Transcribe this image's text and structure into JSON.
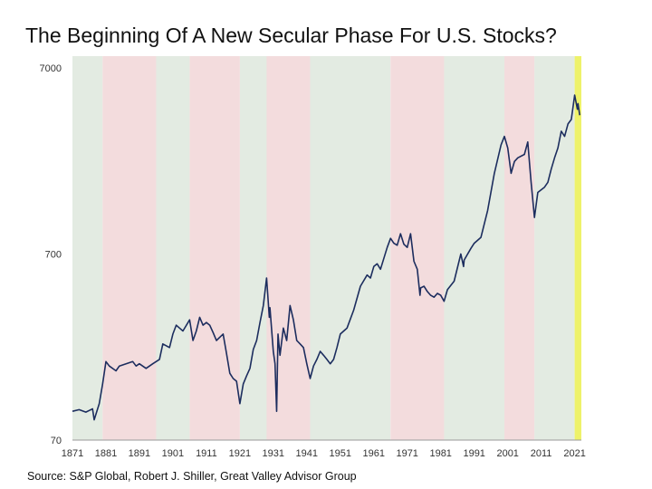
{
  "header": {
    "title": "The Beginning Of A New Secular Phase For U.S. Stocks?"
  },
  "footer": {
    "source": "Source: S&P Global, Robert J. Shiller, Great Valley Advisor Group"
  },
  "chart_data": {
    "type": "line",
    "title": "The Beginning Of A New Secular Phase For U.S. Stocks?",
    "xlabel": "",
    "ylabel": "",
    "y_scale": "log",
    "xlim": [
      1871,
      2023
    ],
    "ylim": [
      70,
      7000
    ],
    "x_ticks": [
      "1871",
      "1881",
      "1891",
      "1901",
      "1911",
      "1921",
      "1931",
      "1941",
      "1951",
      "1961",
      "1971",
      "1981",
      "1991",
      "2001",
      "2011",
      "2021"
    ],
    "y_ticks": [
      "70",
      "700",
      "7000"
    ],
    "grid": false,
    "legend": "none",
    "regimes": [
      {
        "start": 1871,
        "end": 1880,
        "type": "bull",
        "color": "#e3ebe2"
      },
      {
        "start": 1880,
        "end": 1896,
        "type": "bear",
        "color": "#f3dcdd"
      },
      {
        "start": 1896,
        "end": 1906,
        "type": "bull",
        "color": "#e3ebe2"
      },
      {
        "start": 1906,
        "end": 1921,
        "type": "bear",
        "color": "#f3dcdd"
      },
      {
        "start": 1921,
        "end": 1929,
        "type": "bull",
        "color": "#e3ebe2"
      },
      {
        "start": 1929,
        "end": 1942,
        "type": "bear",
        "color": "#f3dcdd"
      },
      {
        "start": 1942,
        "end": 1966,
        "type": "bull",
        "color": "#e3ebe2"
      },
      {
        "start": 1966,
        "end": 1982,
        "type": "bear",
        "color": "#f3dcdd"
      },
      {
        "start": 1982,
        "end": 2000,
        "type": "bull",
        "color": "#e3ebe2"
      },
      {
        "start": 2000,
        "end": 2009,
        "type": "bear",
        "color": "#f3dcdd"
      },
      {
        "start": 2009,
        "end": 2021,
        "type": "bull",
        "color": "#e3ebe2"
      },
      {
        "start": 2021,
        "end": 2023,
        "type": "current",
        "color": "#eef26a"
      }
    ],
    "series": [
      {
        "color": "#1c2d5e",
        "x": [
          1871,
          1873,
          1875,
          1876,
          1877,
          1877.5,
          1879,
          1880,
          1881,
          1882,
          1884,
          1885,
          1887,
          1889,
          1890,
          1891,
          1893,
          1895,
          1897,
          1898,
          1900,
          1901,
          1902,
          1903,
          1904,
          1906,
          1907,
          1908,
          1909,
          1910,
          1911,
          1912,
          1913,
          1914,
          1915,
          1916,
          1917,
          1918,
          1919,
          1920,
          1921,
          1922,
          1923,
          1924,
          1925,
          1926,
          1927,
          1928,
          1929,
          1929.8,
          1930,
          1931,
          1931.5,
          1932,
          1932.4,
          1933,
          1934,
          1935,
          1936,
          1937,
          1938,
          1939,
          1940,
          1941,
          1942,
          1943,
          1944,
          1945,
          1946,
          1947,
          1948,
          1949,
          1950,
          1951,
          1953,
          1955,
          1957,
          1959,
          1960,
          1961,
          1962,
          1963,
          1965,
          1966,
          1967,
          1968,
          1969,
          1970,
          1971,
          1972,
          1973,
          1974,
          1974.8,
          1975,
          1976,
          1977,
          1978,
          1979,
          1980,
          1981,
          1982,
          1983,
          1985,
          1987,
          1987.8,
          1988,
          1990,
          1991,
          1993,
          1995,
          1997,
          1999,
          2000,
          2001,
          2002,
          2003,
          2004,
          2006,
          2007,
          2008,
          2009,
          2010,
          2012,
          2013,
          2014,
          2015,
          2016,
          2017,
          2018,
          2019,
          2020,
          2021,
          2021.8,
          2022,
          2022.5
        ],
        "y": [
          100,
          102,
          99,
          101,
          103,
          90,
          110,
          140,
          185,
          175,
          165,
          175,
          180,
          185,
          175,
          180,
          170,
          180,
          190,
          230,
          220,
          260,
          290,
          280,
          270,
          310,
          240,
          270,
          320,
          290,
          300,
          290,
          265,
          240,
          250,
          260,
          205,
          160,
          150,
          145,
          110,
          140,
          155,
          170,
          215,
          240,
          300,
          370,
          520,
          320,
          360,
          210,
          180,
          100,
          260,
          200,
          280,
          240,
          370,
          310,
          240,
          230,
          220,
          180,
          150,
          175,
          190,
          210,
          200,
          190,
          180,
          190,
          220,
          260,
          280,
          350,
          470,
          540,
          520,
          600,
          620,
          580,
          760,
          850,
          800,
          780,
          900,
          790,
          760,
          900,
          640,
          580,
          420,
          460,
          470,
          440,
          420,
          410,
          430,
          420,
          390,
          450,
          500,
          700,
          600,
          650,
          750,
          800,
          860,
          1200,
          1900,
          2700,
          3000,
          2600,
          1900,
          2200,
          2300,
          2400,
          2800,
          1700,
          1100,
          1500,
          1600,
          1700,
          2000,
          2300,
          2600,
          3200,
          3000,
          3500,
          3700,
          5000,
          4200,
          4500,
          3900
        ]
      }
    ]
  }
}
